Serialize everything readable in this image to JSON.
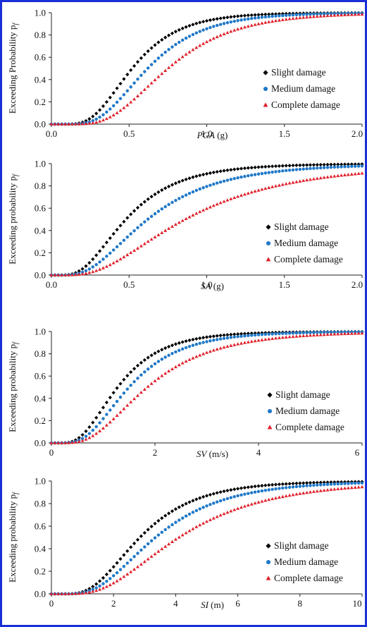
{
  "colors": {
    "border": "#1a2fd6",
    "slight": "#000000",
    "medium": "#1f78c8",
    "complete": "#e0202a"
  },
  "chart_data": [
    {
      "type": "line",
      "panel": "PGA",
      "xlabel_var": "PGA",
      "xlabel_unit": " (g)",
      "ylabel": "Exceeding Probability p",
      "ylabel_sub": "f",
      "xlim": [
        0,
        2
      ],
      "ylim": [
        0,
        1
      ],
      "xticks": [
        "0.0",
        "0.5",
        "1.0",
        "1.5",
        "2.0"
      ],
      "yticks": [
        "0.0",
        "0.2",
        "0.4",
        "0.6",
        "0.8",
        "1.0"
      ],
      "legend_position": "right",
      "series": [
        {
          "name": "Slight damage",
          "marker": "diamond",
          "median": 0.52,
          "beta": 0.45
        },
        {
          "name": "Medium damage",
          "marker": "circle",
          "median": 0.62,
          "beta": 0.45
        },
        {
          "name": "Complete damage",
          "marker": "triangle",
          "median": 0.75,
          "beta": 0.45
        }
      ]
    },
    {
      "type": "line",
      "panel": "SA",
      "xlabel_var": "SA",
      "xlabel_unit": " (g)",
      "ylabel": "Exceeding probability p",
      "ylabel_sub": "f",
      "xlim": [
        0,
        2
      ],
      "ylim": [
        0,
        1
      ],
      "xticks": [
        "0.0",
        "0.5",
        "1.0",
        "1.5",
        "2.0"
      ],
      "yticks": [
        "0.0",
        "0.2",
        "0.4",
        "0.6",
        "0.8",
        "1.0"
      ],
      "legend_position": "right",
      "series": [
        {
          "name": "Slight damage",
          "marker": "diamond",
          "median": 0.48,
          "beta": 0.55
        },
        {
          "name": "Medium damage",
          "marker": "circle",
          "median": 0.62,
          "beta": 0.58
        },
        {
          "name": "Complete damage",
          "marker": "triangle",
          "median": 0.86,
          "beta": 0.62
        }
      ]
    },
    {
      "type": "line",
      "panel": "SV",
      "xlabel_var": "SV",
      "xlabel_unit": " (m/s)",
      "ylabel": "Exceeding probability p",
      "ylabel_sub": "f",
      "xlim": [
        0,
        6
      ],
      "ylim": [
        0,
        1
      ],
      "xticks": [
        "0",
        "2",
        "4",
        "6"
      ],
      "yticks": [
        "0.0",
        "0.2",
        "0.4",
        "0.6",
        "0.8",
        "1.0"
      ],
      "legend_position": "right",
      "series": [
        {
          "name": "Slight damage",
          "marker": "diamond",
          "median": 1.28,
          "beta": 0.52
        },
        {
          "name": "Medium damage",
          "marker": "circle",
          "median": 1.5,
          "beta": 0.52
        },
        {
          "name": "Complete damage",
          "marker": "triangle",
          "median": 1.85,
          "beta": 0.55
        }
      ]
    },
    {
      "type": "line",
      "panel": "SI",
      "xlabel_var": "SI",
      "xlabel_unit": " (m)",
      "ylabel": "Exceeding probability p",
      "ylabel_sub": "f",
      "xlim": [
        0,
        10
      ],
      "ylim": [
        0,
        1
      ],
      "xticks": [
        "0",
        "2",
        "4",
        "6",
        "8",
        "10"
      ],
      "yticks": [
        "0.0",
        "0.2",
        "0.4",
        "0.6",
        "0.8",
        "1.0"
      ],
      "legend_position": "right",
      "series": [
        {
          "name": "Slight damage",
          "marker": "diamond",
          "median": 2.85,
          "beta": 0.5
        },
        {
          "name": "Medium damage",
          "marker": "circle",
          "median": 3.35,
          "beta": 0.52
        },
        {
          "name": "Complete damage",
          "marker": "triangle",
          "median": 4.1,
          "beta": 0.55
        }
      ]
    }
  ]
}
